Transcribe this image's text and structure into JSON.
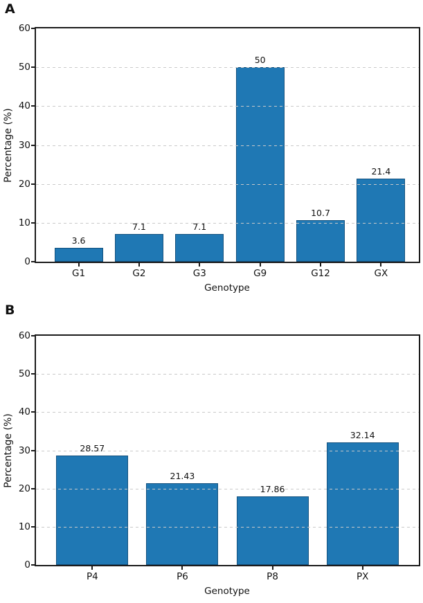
{
  "figure": {
    "panels": [
      {
        "label": "A"
      },
      {
        "label": "B"
      }
    ]
  },
  "chart_data": [
    {
      "type": "bar",
      "panel": "A",
      "title": "",
      "categories": [
        "G1",
        "G2",
        "G3",
        "G9",
        "G12",
        "GX"
      ],
      "values": [
        3.6,
        7.1,
        7.1,
        50,
        10.7,
        21.4
      ],
      "value_labels": [
        "3.6",
        "7.1",
        "7.1",
        "50",
        "10.7",
        "21.4"
      ],
      "xlabel": "Genotype",
      "ylabel": "Percentage (%)",
      "ylim": [
        0,
        60
      ],
      "yticks": [
        0,
        10,
        20,
        30,
        40,
        50,
        60
      ],
      "grid": "horizontal dashed",
      "legend": "none",
      "bar_color": "#1f78b4",
      "bar_edge_color": "#14517e",
      "gridline_color": "#c9c9c9"
    },
    {
      "type": "bar",
      "panel": "B",
      "title": "",
      "categories": [
        "P4",
        "P6",
        "P8",
        "PX"
      ],
      "values": [
        28.57,
        21.43,
        17.86,
        32.14
      ],
      "value_labels": [
        "28.57",
        "21.43",
        "17.86",
        "32.14"
      ],
      "xlabel": "Genotype",
      "ylabel": "Percentage (%)",
      "ylim": [
        0,
        60
      ],
      "yticks": [
        0,
        10,
        20,
        30,
        40,
        50,
        60
      ],
      "grid": "horizontal dashed",
      "legend": "none",
      "bar_color": "#1f78b4",
      "bar_edge_color": "#14517e",
      "gridline_color": "#c9c9c9"
    }
  ]
}
